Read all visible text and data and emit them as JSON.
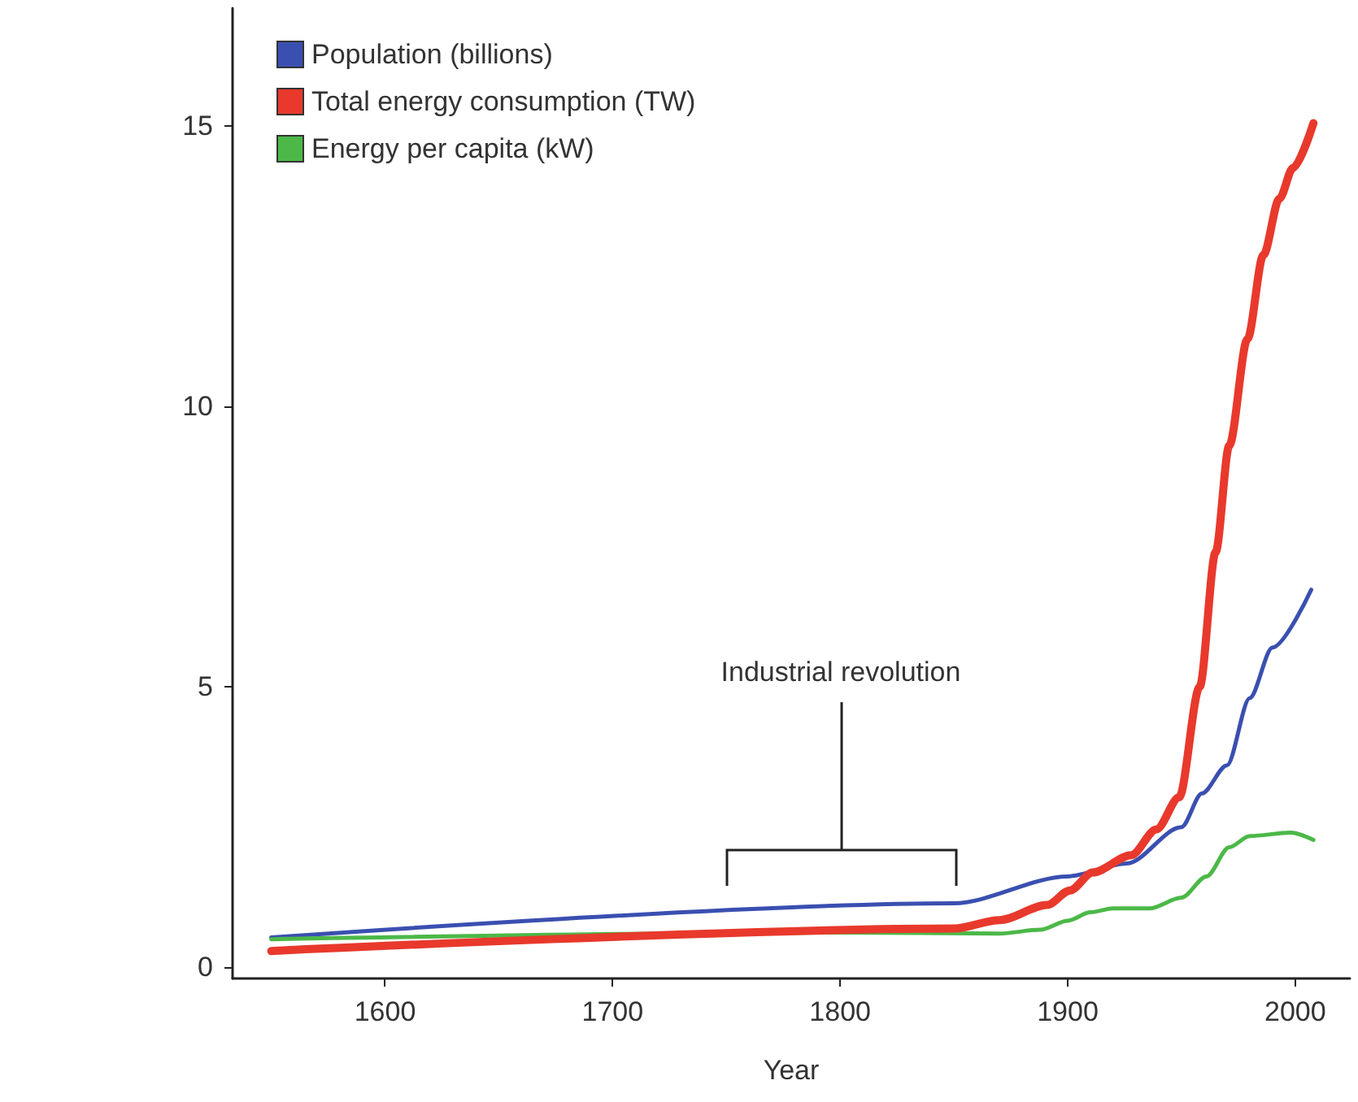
{
  "chart_data": {
    "type": "line",
    "xlabel": "Year",
    "x": [
      1550,
      1850,
      1900,
      1926,
      1950,
      1959,
      1970,
      1980,
      1990,
      2007
    ],
    "series": [
      {
        "name": "Population (billions)",
        "color": "#3a4fb0",
        "values": [
          0.53,
          1.14,
          1.62,
          1.85,
          2.5,
          3.1,
          3.6,
          4.8,
          5.7,
          6.73
        ]
      },
      {
        "name": "Total energy consumption (TW)",
        "color": "#e8392c",
        "x": [
          1550,
          1850,
          1870,
          1891,
          1901,
          1911,
          1928,
          1939,
          1949,
          1958,
          1965,
          1971,
          1979,
          1986,
          1993,
          1999,
          2008
        ],
        "values": [
          0.29,
          0.69,
          0.84,
          1.11,
          1.37,
          1.69,
          2.0,
          2.46,
          3.03,
          5.0,
          7.4,
          9.3,
          11.2,
          12.7,
          13.7,
          14.25,
          15.05
        ]
      },
      {
        "name": "Energy per capita (kW)",
        "color": "#4cb848",
        "x": [
          1550,
          1800,
          1870,
          1888,
          1900,
          1910,
          1920,
          1936,
          1950,
          1961,
          1971,
          1980,
          1998,
          2008
        ],
        "values": [
          0.5,
          0.62,
          0.6,
          0.67,
          0.83,
          0.98,
          1.05,
          1.05,
          1.24,
          1.62,
          2.14,
          2.34,
          2.4,
          2.27
        ]
      }
    ],
    "xlim": [
      1533,
      2024
    ],
    "xticks": [
      {
        "value": 1600,
        "label": "1600"
      },
      {
        "value": 1700,
        "label": "1700"
      },
      {
        "value": 1800,
        "label": "1800"
      },
      {
        "value": 1900,
        "label": "1900"
      },
      {
        "value": 2000,
        "label": "2000"
      }
    ],
    "ylim": [
      -0.2,
      17.1
    ],
    "yticks": [
      0,
      5,
      10,
      15
    ],
    "annotations": [
      "Industrial revolution"
    ],
    "grid": false,
    "legend": "top left",
    "marker": "none",
    "line_style": "solid"
  }
}
